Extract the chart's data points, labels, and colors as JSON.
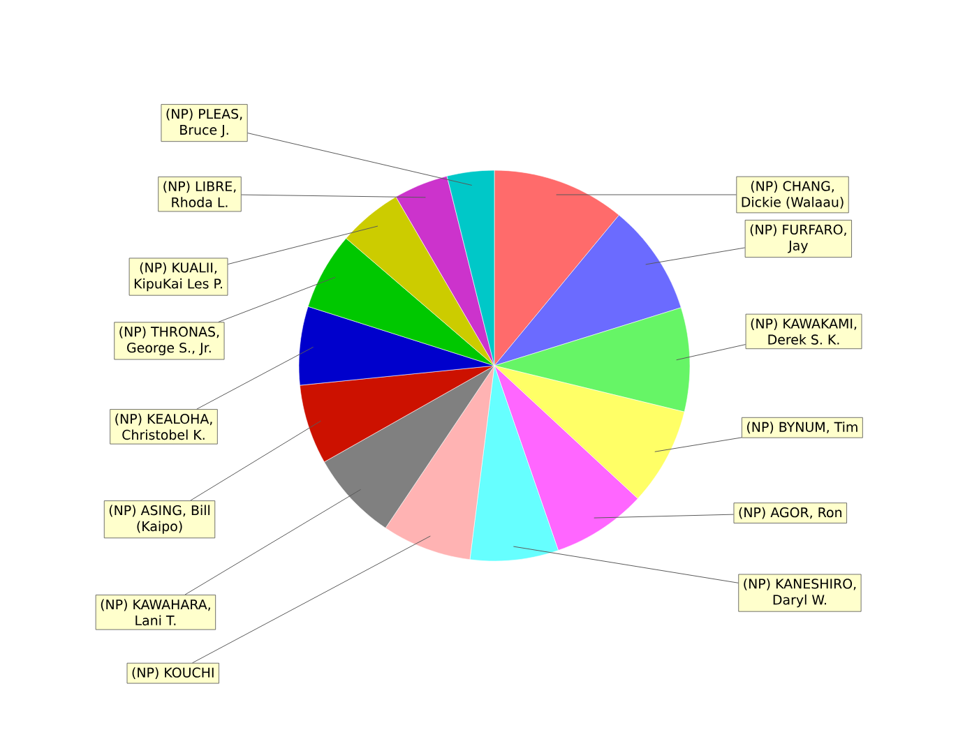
{
  "chart_data": {
    "type": "pie",
    "categories": [
      "(NP) CHANG, Dickie (Walaau)",
      "(NP) FURFARO, Jay",
      "(NP) KAWAKAMI, Derek S. K.",
      "(NP) BYNUM, Tim",
      "(NP) AGOR, Ron",
      "(NP) KANESHIRO, Daryl W.",
      "(NP) KOUCHI",
      "(NP) KAWAHARA, Lani T.",
      "(NP) ASING, Bill (Kaipo)",
      "(NP) KEALOHA, Christobel K.",
      "(NP) THRONAS, George S., Jr.",
      "(NP) KUALII, KipuKai Les P.",
      "(NP) LIBRE, Rhoda L.",
      "(NP) PLEAS, Bruce J."
    ],
    "values": [
      11.0,
      9.2,
      8.6,
      8.1,
      7.8,
      7.3,
      7.4,
      7.4,
      6.6,
      6.5,
      6.4,
      5.3,
      4.5,
      3.9
    ],
    "colors": [
      "#ff6b6b",
      "#6b6bff",
      "#66f566",
      "#ffff66",
      "#ff66ff",
      "#66ffff",
      "#ffb3b3",
      "#808080",
      "#cc1100",
      "#0000cc",
      "#00c800",
      "#cccc00",
      "#cc33cc",
      "#00c8c8"
    ]
  }
}
